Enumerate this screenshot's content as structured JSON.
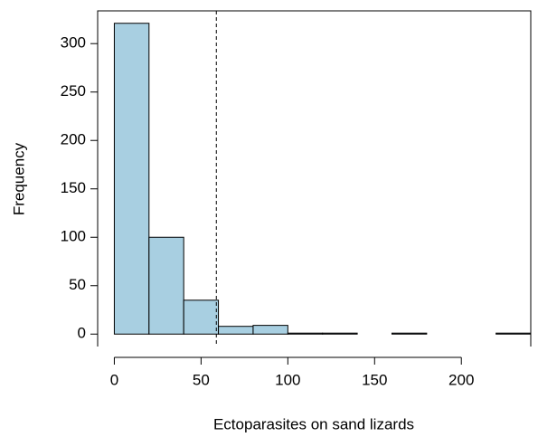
{
  "chart_data": {
    "type": "histogram",
    "x_label": "Ectoparasites on sand lizards",
    "y_label": "Frequency",
    "bins": [
      0,
      20,
      40,
      60,
      80,
      100,
      120,
      140,
      160,
      180,
      200,
      220,
      240
    ],
    "values": [
      321,
      100,
      35,
      8,
      9,
      1,
      1,
      0,
      1,
      0,
      0,
      1
    ],
    "color": "#a8cfe1",
    "xlim": [
      -9.6,
      240
    ],
    "ylim": [
      -12.84,
      333.84
    ],
    "xticks": [
      0,
      50,
      100,
      150,
      200
    ],
    "yticks": [
      0,
      50,
      100,
      150,
      200,
      250,
      300
    ],
    "reference_line": {
      "x": 58.8,
      "style": "dashed"
    }
  }
}
